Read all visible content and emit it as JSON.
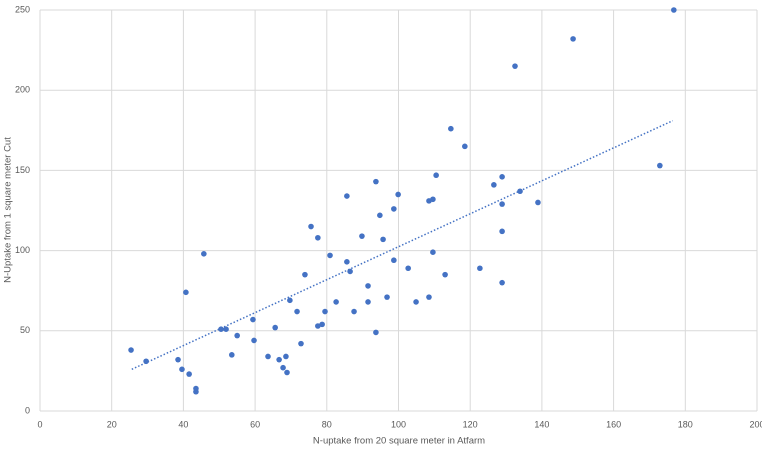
{
  "chart_data": {
    "type": "scatter",
    "x_label": "N-uptake from 20 square meter in Atfarm",
    "y_label": "N-Uptake from 1 square meter Cut",
    "color": "#4472c4",
    "grid": true,
    "xlim": [
      0,
      200
    ],
    "xticks": [
      0,
      20,
      40,
      60,
      80,
      100,
      120,
      140,
      160,
      180,
      200
    ],
    "ylim": [
      0,
      250
    ],
    "yticks": [
      0,
      50,
      100,
      150,
      200,
      250
    ],
    "x": [
      25.4,
      29.6,
      38.5,
      39.6,
      41.6,
      43.5,
      43.5,
      40.7,
      45.7,
      50.5,
      51.9,
      53.5,
      55,
      59.4,
      59.7,
      63.6,
      65.6,
      66.7,
      67.8,
      68.6,
      68.9,
      69.7,
      71.7,
      72.8,
      73.9,
      75.6,
      77.5,
      77.5,
      78.7,
      79.5,
      80.9,
      82.6,
      85.6,
      85.6,
      86.5,
      87.6,
      89.8,
      91.5,
      91.5,
      93.7,
      93.7,
      94.8,
      95.7,
      96.8,
      98.7,
      98.7,
      99.9,
      102.7,
      104.9,
      108.5,
      108.5,
      109.6,
      109.6,
      110.5,
      113,
      114.6,
      118.5,
      122.7,
      126.6,
      128.9,
      128.9,
      128.9,
      128.9,
      132.5,
      133.9,
      138.9,
      148.7,
      172.9,
      176.8
    ],
    "values": [
      38,
      31,
      32,
      26,
      23,
      14,
      12,
      74,
      98,
      51,
      51,
      35,
      47,
      57,
      44,
      34,
      52,
      32,
      27,
      34,
      24,
      69,
      62,
      42,
      85,
      115,
      108,
      53,
      54,
      62,
      97,
      68,
      93,
      134,
      87,
      62,
      109,
      78,
      68,
      143,
      49,
      122,
      107,
      71,
      126,
      94,
      135,
      89,
      68,
      131,
      71,
      132,
      99,
      147,
      85,
      176,
      165,
      89,
      141,
      146,
      129,
      112,
      80,
      215,
      137,
      130,
      232,
      153,
      250
    ],
    "trendline": {
      "x": [
        25.6,
        176.5
      ],
      "values": [
        26,
        181
      ]
    }
  }
}
